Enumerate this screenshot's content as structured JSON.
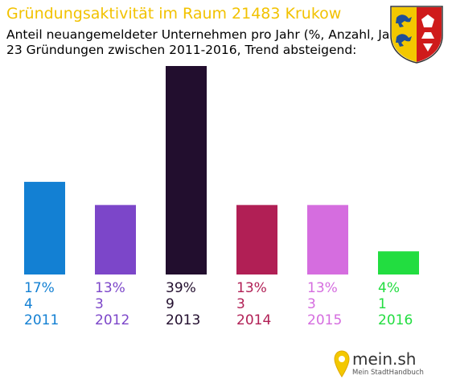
{
  "header": {
    "title": "Gründungsaktivität im Raum 21483 Krukow",
    "subtitle_line1": "Anteil neuangemeldeter Unternehmen pro Jahr (%, Anzahl, Jahr)",
    "subtitle_line2": "23 Gründungen zwischen 2011-2016, Trend absteigend:"
  },
  "crest": {
    "icon": "schleswig-holstein-coat-of-arms-icon"
  },
  "logo": {
    "name": "mein.sh",
    "tagline": "Mein StadtHandbuch"
  },
  "chart_data": {
    "type": "bar",
    "categories": [
      "2011",
      "2012",
      "2013",
      "2014",
      "2015",
      "2016"
    ],
    "values": [
      4,
      3,
      9,
      3,
      3,
      1
    ],
    "percent_labels": [
      "17%",
      "13%",
      "39%",
      "13%",
      "13%",
      "4%"
    ],
    "count_labels": [
      "4",
      "3",
      "9",
      "3",
      "3",
      "1"
    ],
    "colors": [
      "#1380d3",
      "#7c46c9",
      "#220e2e",
      "#b11f55",
      "#d56ddf",
      "#22dd40"
    ],
    "grid": false,
    "legend": "none"
  }
}
